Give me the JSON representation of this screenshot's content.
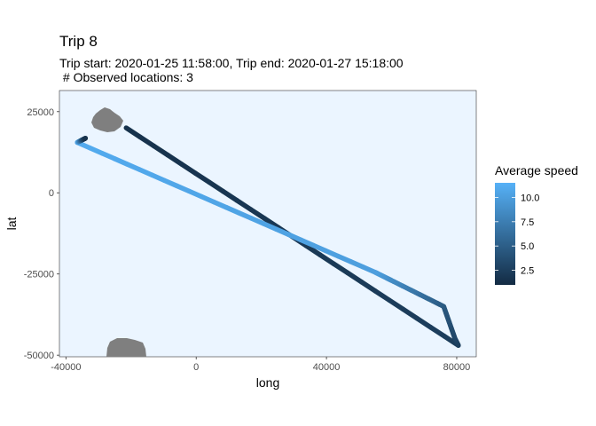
{
  "chart_data": {
    "type": "line",
    "title": "Trip 8",
    "subtitle": "Trip start: 2020-01-25 11:58:00, Trip end: 2020-01-27 15:18:00\n # Observed locations: 3",
    "xlabel": "long",
    "ylabel": "lat",
    "xlim": [
      -42000,
      86000
    ],
    "ylim": [
      -50500,
      31500
    ],
    "xticks": [
      -40000,
      0,
      40000,
      80000
    ],
    "xtick_labels": [
      "-40000",
      "0",
      "40000",
      "80000"
    ],
    "yticks": [
      25000,
      0,
      -25000,
      -50000
    ],
    "ytick_labels": [
      "25000",
      "0",
      "-25000",
      "-50000"
    ],
    "grid": false,
    "panel_background": "#EBF5FF",
    "legend": {
      "title": "Average speed",
      "placement": "right",
      "range": [
        1,
        11.5
      ],
      "ticks": [
        2.5,
        5.0,
        7.5,
        10.0
      ],
      "tick_labels": [
        "2.5",
        "5.0",
        "7.5",
        "10.0"
      ],
      "low_color": "#132B43",
      "high_color": "#56B1F7"
    },
    "series": [
      {
        "points": [
          {
            "x": -21500,
            "y": 20000,
            "speed": 1.5
          },
          {
            "x": 80500,
            "y": -47000,
            "speed": 2.5
          },
          {
            "x": 79500,
            "y": -45000,
            "speed": 3.0
          },
          {
            "x": 76000,
            "y": -35000,
            "speed": 4.5
          },
          {
            "x": 60000,
            "y": -27000,
            "speed": 8.5
          },
          {
            "x": 55000,
            "y": -24500,
            "speed": 10.0
          },
          {
            "x": -36500,
            "y": 15500,
            "speed": 11.0
          },
          {
            "x": -35000,
            "y": 16300,
            "speed": 4.0
          },
          {
            "x": -34000,
            "y": 16800,
            "speed": 1.5
          }
        ]
      }
    ],
    "land_color": "#7F7F7F"
  }
}
